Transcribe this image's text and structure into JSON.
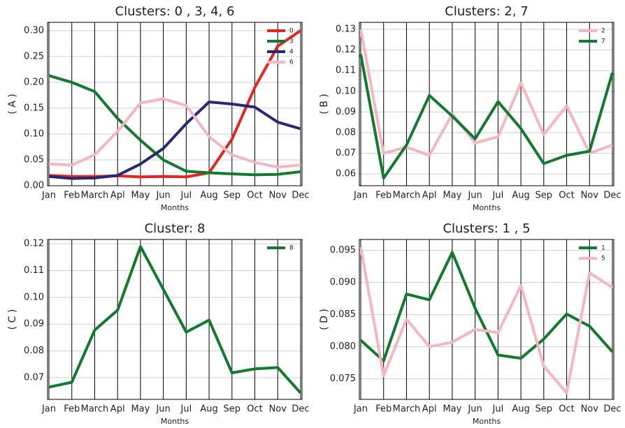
{
  "chart_data": [
    {
      "type": "line",
      "title": "Clusters: 0 , 3, 4, 6",
      "ylabel": "( A )",
      "xlabel": "Months",
      "categories": [
        "Jan",
        "Feb",
        "March",
        "Apl",
        "May",
        "Jun",
        "Jul",
        "Aug",
        "Sep",
        "Oct",
        "Nov",
        "Dec"
      ],
      "series": [
        {
          "name": "0",
          "color": "#e3261f",
          "values": [
            0.02,
            0.018,
            0.018,
            0.019,
            0.017,
            0.018,
            0.017,
            0.025,
            0.09,
            0.19,
            0.27,
            0.3
          ]
        },
        {
          "name": "3",
          "color": "#127a2e",
          "values": [
            0.213,
            0.2,
            0.182,
            0.13,
            0.088,
            0.05,
            0.028,
            0.025,
            0.023,
            0.021,
            0.022,
            0.027
          ]
        },
        {
          "name": "4",
          "color": "#262874",
          "values": [
            0.018,
            0.014,
            0.015,
            0.02,
            0.042,
            0.072,
            0.12,
            0.162,
            0.158,
            0.152,
            0.123,
            0.11
          ]
        },
        {
          "name": "6",
          "color": "#f4b6c2",
          "values": [
            0.042,
            0.04,
            0.06,
            0.105,
            0.16,
            0.168,
            0.155,
            0.095,
            0.06,
            0.045,
            0.036,
            0.04
          ]
        }
      ],
      "ylim": [
        0,
        0.316
      ],
      "yticks": [
        {
          "value": 0,
          "label": "0.00"
        },
        0.05,
        {
          "value": 0.1,
          "label": "0.10"
        },
        0.15,
        {
          "value": 0.2,
          "label": "0.20"
        },
        0.25,
        {
          "value": 0.3,
          "label": "0.30"
        }
      ],
      "grid": true,
      "legend": "upper right"
    },
    {
      "type": "line",
      "title": "Clusters: 2, 7",
      "ylabel": "( B )",
      "xlabel": "Months",
      "categories": [
        "Jan",
        "Feb",
        "March",
        "Apl",
        "May",
        "Jun",
        "Jul",
        "Aug",
        "Sep",
        "Oct",
        "Nov",
        "Dec"
      ],
      "series": [
        {
          "name": "2",
          "color": "#f4b6c2",
          "values": [
            0.13,
            0.07,
            0.073,
            0.069,
            0.089,
            0.075,
            0.078,
            0.104,
            0.079,
            0.093,
            0.07,
            0.074
          ]
        },
        {
          "name": "7",
          "color": "#127a2e",
          "values": [
            0.118,
            0.058,
            0.074,
            0.098,
            0.088,
            0.077,
            0.095,
            0.082,
            0.065,
            0.069,
            0.071,
            0.109
          ]
        }
      ],
      "ylim": [
        0.0543,
        0.1334
      ],
      "yticks": [
        0.06,
        0.07,
        0.08,
        0.09,
        {
          "value": 0.1,
          "label": "0.10"
        },
        0.11,
        0.12,
        0.13
      ],
      "grid": true,
      "legend": "upper right"
    },
    {
      "type": "line",
      "title": "Cluster: 8",
      "ylabel": "( C )",
      "xlabel": "Months",
      "categories": [
        "Jan",
        "Feb",
        "March",
        "Apl",
        "May",
        "Jun",
        "Jul",
        "Aug",
        "Sep",
        "Oct",
        "Nov",
        "Dec"
      ],
      "series": [
        {
          "name": "8",
          "color": "#127a2e",
          "values": [
            0.0665,
            0.0683,
            0.0878,
            0.0952,
            0.119,
            0.103,
            0.087,
            0.0915,
            0.0718,
            0.0733,
            0.0738,
            0.0643
          ]
        }
      ],
      "ylim": [
        0.0619,
        0.1216
      ],
      "yticks": [
        0.07,
        0.08,
        0.09,
        {
          "value": 0.1,
          "label": "0.10"
        },
        0.11,
        0.12
      ],
      "grid": true,
      "legend": "upper right"
    },
    {
      "type": "line",
      "title": "Clusters: 1 , 5",
      "ylabel": "( D )",
      "xlabel": "Months",
      "categories": [
        "Jan",
        "Feb",
        "March",
        "Apl",
        "May",
        "Jun",
        "Jul",
        "Aug",
        "Sep",
        "Oct",
        "Nov",
        "Dec"
      ],
      "series": [
        {
          "name": "1",
          "color": "#127a2e",
          "values": [
            0.081,
            0.0778,
            0.0882,
            0.0873,
            0.0947,
            0.086,
            0.0787,
            0.0782,
            0.0812,
            0.0851,
            0.0832,
            0.0792
          ]
        },
        {
          "name": "5",
          "color": "#f4b6c2",
          "values": [
            0.0955,
            0.0755,
            0.0843,
            0.08,
            0.0807,
            0.0827,
            0.0822,
            0.0895,
            0.077,
            0.0728,
            0.0915,
            0.0892
          ]
        }
      ],
      "ylim": [
        0.0718,
        0.0967
      ],
      "yticks": [
        0.075,
        {
          "value": 0.08,
          "label": "0.080"
        },
        0.085,
        {
          "value": 0.09,
          "label": "0.090"
        },
        0.095
      ],
      "grid": true,
      "legend": "upper right"
    }
  ]
}
